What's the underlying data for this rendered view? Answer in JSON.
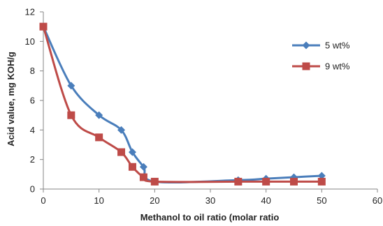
{
  "chart_data": {
    "type": "line",
    "title": "",
    "xlabel": "Methanol to oil ratio (molar ratio",
    "ylabel": "Acid value, mg KOH/g",
    "xlim": [
      0,
      60
    ],
    "ylim": [
      0,
      12
    ],
    "xticks": [
      "0",
      "10",
      "20",
      "30",
      "40",
      "50",
      "60"
    ],
    "yticks": [
      "0",
      "2",
      "4",
      "6",
      "8",
      "10",
      "12"
    ],
    "grid": false,
    "legend_position": "right",
    "smoothed": true,
    "series": [
      {
        "name": "5 wt%",
        "color": "#4a7ebb",
        "marker": "diamond",
        "x": [
          0,
          5,
          10,
          14,
          16,
          18,
          20,
          35,
          40,
          45,
          50
        ],
        "y": [
          11,
          7,
          5,
          4,
          2.5,
          1.5,
          0.5,
          0.6,
          0.7,
          0.8,
          0.9
        ]
      },
      {
        "name": "9 wt%",
        "color": "#be4b48",
        "marker": "square",
        "x": [
          0,
          5,
          10,
          14,
          16,
          18,
          20,
          35,
          40,
          45,
          50
        ],
        "y": [
          11,
          5,
          3.5,
          2.5,
          1.5,
          0.8,
          0.5,
          0.5,
          0.5,
          0.5,
          0.5
        ]
      }
    ]
  }
}
